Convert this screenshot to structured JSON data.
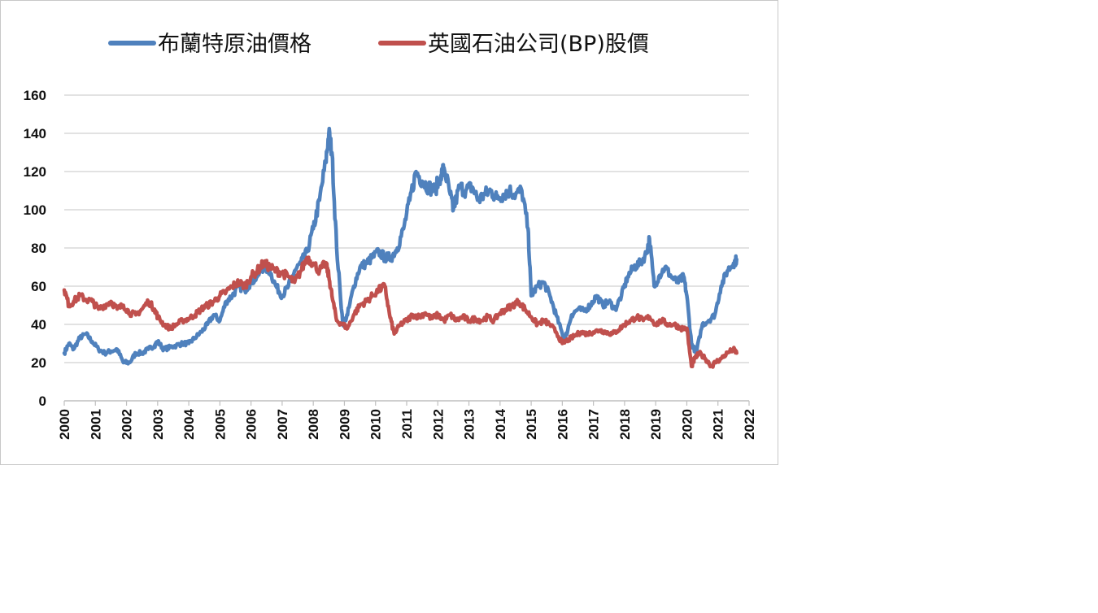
{
  "chart_data": {
    "type": "line",
    "title": "",
    "xlabel": "",
    "ylabel": "",
    "xlim": [
      2000,
      2022
    ],
    "ylim": [
      0,
      160
    ],
    "yticks": [
      0,
      20,
      40,
      60,
      80,
      100,
      120,
      140,
      160
    ],
    "xticks": [
      "2000",
      "2001",
      "2002",
      "2003",
      "2004",
      "2005",
      "2006",
      "2007",
      "2008",
      "2009",
      "2010",
      "2011",
      "2012",
      "2013",
      "2014",
      "2015",
      "2016",
      "2017",
      "2018",
      "2019",
      "2020",
      "2021",
      "2022"
    ],
    "grid": "horizontal",
    "legend_position": "top",
    "series": [
      {
        "name": "布蘭特原油價格",
        "color": "#4f81bd",
        "x": [
          2000.0,
          2000.15,
          2000.3,
          2000.5,
          2000.7,
          2000.9,
          2001.1,
          2001.3,
          2001.5,
          2001.7,
          2001.9,
          2002.1,
          2002.3,
          2002.5,
          2002.7,
          2002.9,
          2003.0,
          2003.2,
          2003.4,
          2003.6,
          2003.8,
          2004.0,
          2004.2,
          2004.4,
          2004.6,
          2004.8,
          2005.0,
          2005.2,
          2005.4,
          2005.6,
          2005.8,
          2006.0,
          2006.2,
          2006.4,
          2006.6,
          2006.8,
          2007.0,
          2007.2,
          2007.4,
          2007.6,
          2007.8,
          2008.0,
          2008.2,
          2008.4,
          2008.5,
          2008.6,
          2008.75,
          2008.95,
          2009.1,
          2009.3,
          2009.5,
          2009.7,
          2009.9,
          2010.1,
          2010.3,
          2010.5,
          2010.7,
          2010.9,
          2011.1,
          2011.3,
          2011.5,
          2011.7,
          2011.9,
          2012.1,
          2012.2,
          2012.4,
          2012.5,
          2012.7,
          2012.9,
          2013.1,
          2013.3,
          2013.5,
          2013.7,
          2013.9,
          2014.1,
          2014.3,
          2014.5,
          2014.7,
          2014.9,
          2015.0,
          2015.2,
          2015.4,
          2015.6,
          2015.8,
          2016.0,
          2016.1,
          2016.3,
          2016.5,
          2016.7,
          2016.9,
          2017.1,
          2017.3,
          2017.5,
          2017.7,
          2017.9,
          2018.1,
          2018.3,
          2018.5,
          2018.7,
          2018.8,
          2018.95,
          2019.1,
          2019.3,
          2019.5,
          2019.7,
          2019.9,
          2020.0,
          2020.15,
          2020.3,
          2020.5,
          2020.7,
          2020.9,
          2021.1,
          2021.3,
          2021.5,
          2021.6
        ],
        "values": [
          25,
          30,
          27,
          33,
          35,
          31,
          27,
          25,
          26,
          27,
          20,
          20,
          25,
          25,
          27,
          29,
          31,
          27,
          28,
          29,
          30,
          30,
          33,
          36,
          40,
          45,
          42,
          52,
          55,
          60,
          58,
          62,
          65,
          70,
          68,
          60,
          55,
          60,
          68,
          72,
          78,
          90,
          105,
          125,
          140,
          130,
          80,
          40,
          45,
          60,
          70,
          72,
          75,
          78,
          75,
          75,
          80,
          90,
          105,
          120,
          115,
          112,
          110,
          118,
          122,
          108,
          100,
          112,
          110,
          112,
          105,
          108,
          110,
          106,
          108,
          110,
          108,
          110,
          90,
          55,
          60,
          62,
          55,
          45,
          35,
          33,
          45,
          48,
          47,
          50,
          55,
          50,
          52,
          48,
          55,
          65,
          70,
          72,
          77,
          85,
          60,
          65,
          70,
          65,
          62,
          65,
          55,
          30,
          25,
          40,
          42,
          45,
          60,
          68,
          72,
          74
        ]
      },
      {
        "name": "英國石油公司(BP)股價",
        "color": "#c0504d",
        "x": [
          2000.0,
          2000.15,
          2000.3,
          2000.5,
          2000.7,
          2000.9,
          2001.1,
          2001.3,
          2001.5,
          2001.7,
          2001.9,
          2002.1,
          2002.3,
          2002.5,
          2002.7,
          2002.9,
          2003.0,
          2003.2,
          2003.4,
          2003.6,
          2003.8,
          2004.0,
          2004.2,
          2004.4,
          2004.6,
          2004.8,
          2005.0,
          2005.2,
          2005.4,
          2005.6,
          2005.8,
          2006.0,
          2006.2,
          2006.4,
          2006.6,
          2006.8,
          2007.0,
          2007.2,
          2007.4,
          2007.6,
          2007.8,
          2008.0,
          2008.2,
          2008.4,
          2008.5,
          2008.6,
          2008.75,
          2008.95,
          2009.1,
          2009.3,
          2009.5,
          2009.7,
          2009.9,
          2010.1,
          2010.3,
          2010.45,
          2010.6,
          2010.8,
          2011.0,
          2011.2,
          2011.4,
          2011.6,
          2011.8,
          2012.0,
          2012.2,
          2012.4,
          2012.6,
          2012.8,
          2013.0,
          2013.2,
          2013.4,
          2013.6,
          2013.8,
          2014.0,
          2014.2,
          2014.4,
          2014.6,
          2014.8,
          2015.0,
          2015.2,
          2015.4,
          2015.6,
          2015.8,
          2016.0,
          2016.2,
          2016.4,
          2016.6,
          2016.8,
          2017.0,
          2017.2,
          2017.4,
          2017.6,
          2017.8,
          2018.0,
          2018.2,
          2018.4,
          2018.6,
          2018.8,
          2019.0,
          2019.2,
          2019.4,
          2019.6,
          2019.8,
          2020.0,
          2020.15,
          2020.25,
          2020.4,
          2020.6,
          2020.8,
          2020.9,
          2021.1,
          2021.3,
          2021.5,
          2021.6
        ],
        "values": [
          58,
          50,
          52,
          55,
          53,
          52,
          48,
          50,
          52,
          48,
          50,
          46,
          45,
          48,
          52,
          48,
          44,
          40,
          38,
          40,
          42,
          43,
          45,
          48,
          50,
          52,
          55,
          57,
          60,
          62,
          60,
          65,
          68,
          72,
          70,
          68,
          67,
          65,
          62,
          68,
          75,
          72,
          68,
          72,
          65,
          55,
          42,
          40,
          38,
          45,
          50,
          52,
          55,
          58,
          60,
          45,
          35,
          40,
          42,
          45,
          44,
          46,
          43,
          45,
          42,
          45,
          42,
          44,
          42,
          43,
          42,
          44,
          42,
          46,
          48,
          50,
          52,
          48,
          44,
          40,
          42,
          40,
          36,
          30,
          32,
          34,
          36,
          35,
          36,
          37,
          36,
          35,
          37,
          40,
          42,
          44,
          42,
          44,
          40,
          42,
          40,
          40,
          38,
          38,
          18,
          22,
          25,
          22,
          18,
          20,
          22,
          25,
          27,
          25
        ]
      }
    ]
  }
}
